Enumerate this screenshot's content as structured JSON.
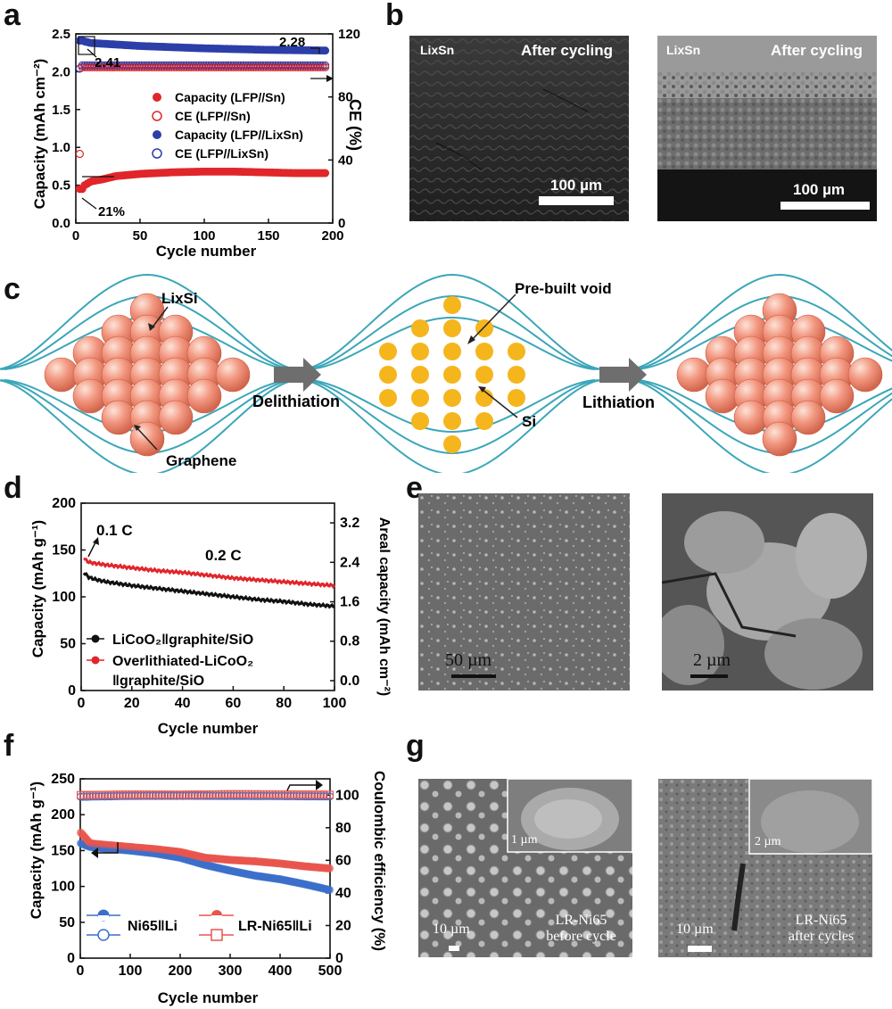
{
  "panels": {
    "a": "a",
    "b": "b",
    "c": "c",
    "d": "d",
    "e": "e",
    "f": "f",
    "g": "g"
  },
  "chart_data": [
    {
      "panel": "a",
      "type": "scatter",
      "xlabel": "Cycle number",
      "ylabel": "Capacity (mAh cm⁻²)",
      "y2label": "CE (%)",
      "xlim": [
        0,
        200
      ],
      "ylim": [
        0,
        2.5
      ],
      "y2lim": [
        0,
        120
      ],
      "xticks": [
        "0",
        "50",
        "100",
        "150",
        "200"
      ],
      "yticks": [
        "0.0",
        "0.5",
        "1.0",
        "1.5",
        "2.0",
        "2.5"
      ],
      "y2ticks": [
        "0",
        "40",
        "80",
        "120"
      ],
      "grid": false,
      "legend_position": "center-right",
      "series": [
        {
          "name": "Capacity (LFP//Sn)",
          "axis": "left",
          "color": "#e0262b",
          "marker": "filled-circle",
          "x": [
            1,
            2,
            3,
            5,
            10,
            20,
            30,
            50,
            75,
            100,
            125,
            150,
            175,
            200
          ],
          "values": [
            0.45,
            0.4,
            0.45,
            0.5,
            0.55,
            0.58,
            0.62,
            0.65,
            0.67,
            0.68,
            0.68,
            0.67,
            0.66,
            0.66
          ]
        },
        {
          "name": "CE (LFP//Sn)",
          "axis": "right",
          "color": "#e0262b",
          "marker": "open-circle",
          "x": [
            1,
            2,
            3,
            5,
            10,
            50,
            100,
            150,
            200
          ],
          "values": [
            45,
            85,
            100,
            100,
            100,
            100,
            100,
            100,
            100
          ]
        },
        {
          "name": "Capacity (LFP//LixSn)",
          "axis": "left",
          "color": "#2c3ea8",
          "marker": "filled-circle",
          "x": [
            1,
            2,
            5,
            10,
            50,
            100,
            150,
            200
          ],
          "values": [
            2.41,
            2.42,
            2.4,
            2.38,
            2.34,
            2.31,
            2.29,
            2.28
          ]
        },
        {
          "name": "CE (LFP//LixSn)",
          "axis": "right",
          "color": "#2c3ea8",
          "marker": "open-circle",
          "x": [
            1,
            2,
            5,
            10,
            50,
            100,
            150,
            200
          ],
          "values": [
            98,
            100,
            100,
            100,
            100,
            100,
            100,
            100
          ]
        }
      ],
      "annotations": [
        "2.41",
        "2.28",
        "21%"
      ]
    },
    {
      "panel": "d",
      "type": "line",
      "xlabel": "Cycle number",
      "ylabel": "Capacity (mAh g⁻¹)",
      "y2label": "Areal capacity (mAh cm⁻²)",
      "xlim": [
        0,
        100
      ],
      "ylim": [
        0,
        200
      ],
      "y2lim": [
        -0.2,
        3.6
      ],
      "xticks": [
        "0",
        "20",
        "40",
        "60",
        "80",
        "100"
      ],
      "yticks": [
        "0",
        "50",
        "100",
        "150",
        "200"
      ],
      "y2ticks": [
        "0.0",
        "0.8",
        "1.6",
        "2.4",
        "3.2"
      ],
      "grid": false,
      "legend_position": "bottom-left",
      "series": [
        {
          "name": "LiCoO₂‖graphite/SiO",
          "color": "#111111",
          "x": [
            1,
            3,
            5,
            10,
            20,
            30,
            40,
            50,
            60,
            70,
            80,
            90,
            100
          ],
          "values": [
            126,
            121,
            119,
            116,
            112,
            109,
            106,
            103,
            100,
            97,
            95,
            92,
            90
          ]
        },
        {
          "name": "Overlithiated-LiCoO₂ ‖graphite/SiO",
          "color": "#e0262b",
          "x": [
            1,
            3,
            5,
            10,
            20,
            30,
            40,
            50,
            60,
            70,
            80,
            90,
            100
          ],
          "values": [
            141,
            137,
            136,
            134,
            131,
            128,
            126,
            123,
            120,
            118,
            116,
            114,
            112
          ]
        }
      ],
      "annotations": [
        "0.1 C",
        "0.2 C"
      ]
    },
    {
      "panel": "f",
      "type": "scatter",
      "xlabel": "Cycle number",
      "ylabel": "Capacity (mAh g⁻¹)",
      "y2label": "Coulombic efficiency (%)",
      "xlim": [
        0,
        500
      ],
      "ylim": [
        0,
        250
      ],
      "y2lim": [
        0,
        110
      ],
      "xticks": [
        "0",
        "100",
        "200",
        "300",
        "400",
        "500"
      ],
      "yticks": [
        "0",
        "50",
        "100",
        "150",
        "200",
        "250"
      ],
      "y2ticks": [
        "0",
        "20",
        "40",
        "60",
        "80",
        "100"
      ],
      "grid": false,
      "legend_position": "bottom",
      "series": [
        {
          "name": "Ni65‖Li",
          "color": "#3b6fc9",
          "kind": "capacity",
          "x": [
            1,
            20,
            50,
            100,
            150,
            200,
            250,
            300,
            350,
            400,
            450,
            500
          ],
          "values": [
            160,
            155,
            153,
            150,
            146,
            140,
            130,
            122,
            115,
            110,
            103,
            95
          ]
        },
        {
          "name": "LR-Ni65‖Li",
          "color": "#e8554d",
          "kind": "capacity",
          "x": [
            1,
            20,
            50,
            100,
            150,
            200,
            250,
            300,
            350,
            400,
            450,
            500
          ],
          "values": [
            175,
            160,
            158,
            155,
            152,
            148,
            140,
            137,
            135,
            132,
            128,
            125
          ]
        },
        {
          "name": "Ni65‖Li CE",
          "color": "#3b6fc9",
          "kind": "ce",
          "x": [
            1,
            100,
            200,
            300,
            400,
            500
          ],
          "values": [
            99,
            99.5,
            99.6,
            99.5,
            99.4,
            99.2
          ]
        },
        {
          "name": "LR-Ni65‖Li CE",
          "color": "#e8554d",
          "kind": "ce",
          "x": [
            1,
            100,
            200,
            300,
            400,
            500
          ],
          "values": [
            100,
            100.3,
            100.2,
            100.5,
            100.4,
            100.2
          ]
        }
      ]
    }
  ],
  "panel_a": {
    "ylabel": "Capacity (mAh cm⁻²)",
    "y2label": "CE (%)",
    "xlabel": "Cycle number",
    "legend": [
      "Capacity (LFP//Sn)",
      "CE (LFP//Sn)",
      "Capacity (LFP//LixSn)",
      "CE (LFP//LixSn)"
    ],
    "ann_241": "2.41",
    "ann_228": "2.28",
    "ann_21": "21%"
  },
  "panel_b": {
    "left_label": "LixSn",
    "left_caption": "After cycling",
    "left_scale": "100 µm",
    "right_label": "LixSn",
    "right_caption": "After cycling",
    "right_scale": "100 µm"
  },
  "panel_c": {
    "lixsi": "LixSi",
    "graphene": "Graphene",
    "prebuilt_void": "Pre-built void",
    "si": "Si",
    "delithiation": "Delithiation",
    "lithiation": "Lithiation"
  },
  "panel_d": {
    "ylabel": "Capacity (mAh g⁻¹)",
    "y2label": "Areal capacity (mAh cm⁻²)",
    "xlabel": "Cycle number",
    "rate1": "0.1 C",
    "rate2": "0.2 C",
    "legend1": "LiCoO₂‖graphite/SiO",
    "legend2a": "Overlithiated-LiCoO₂",
    "legend2b": "‖graphite/SiO"
  },
  "panel_e": {
    "left_scale": "50 µm",
    "right_scale": "2 µm"
  },
  "panel_f": {
    "ylabel": "Capacity (mAh g⁻¹)",
    "y2label": "Coulombic efficiency (%)",
    "xlabel": "Cycle number",
    "legend1": "Ni65‖Li",
    "legend2": "LR-Ni65‖Li"
  },
  "panel_g": {
    "left_inset_scale": "1 µm",
    "left_scale": "10 µm",
    "left_caption1": "LR-Ni65",
    "left_caption2": "before cycle",
    "right_inset_scale": "2 µm",
    "right_scale": "10 µm",
    "right_caption1": "LR-Ni65",
    "right_caption2": "after cycles"
  },
  "colors": {
    "red": "#e0262b",
    "blue": "#2c3ea8",
    "teal": "#3aa6b9",
    "sphere": "#f2967f",
    "yellow": "#f5b51c",
    "arrow": "#6e6e6e"
  }
}
